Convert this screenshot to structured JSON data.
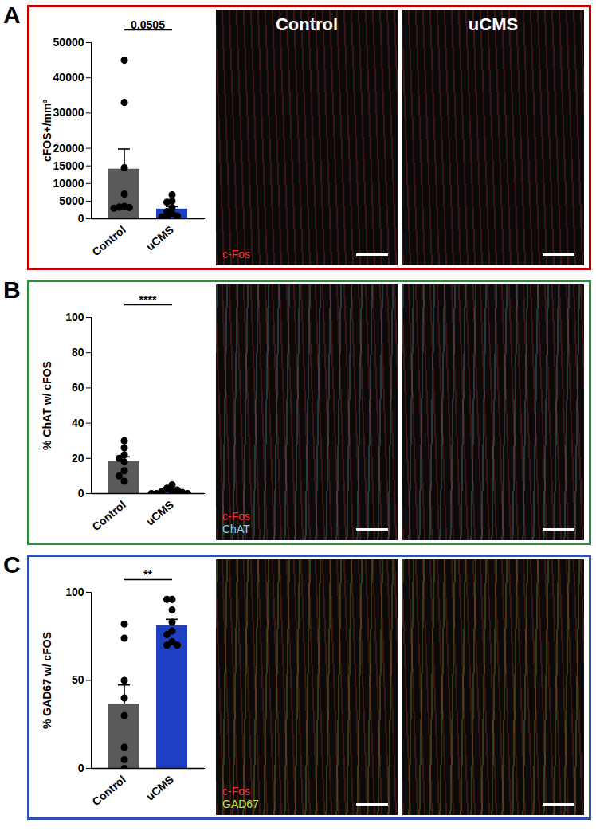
{
  "chart_data": [
    {
      "panel": "A",
      "type": "bar",
      "categories": [
        "Control",
        "uCMS"
      ],
      "values": [
        14100,
        2750
      ],
      "errors": [
        5700,
        700
      ],
      "points": [
        [
          45000,
          33000,
          14500,
          7000,
          3500,
          3300,
          3200,
          3000
        ],
        [
          6800,
          5000,
          4700,
          3200,
          2000,
          1500,
          800,
          500,
          300
        ]
      ],
      "colors": [
        "#5a5a5a",
        "#1f3fc2"
      ],
      "ylabel": "cFOS+/mm³",
      "ylim": [
        0,
        50000
      ],
      "yticks": [
        0,
        5000,
        10000,
        15000,
        20000,
        30000,
        40000,
        50000
      ],
      "annotation": "0.0505",
      "image_titles": [
        "Control",
        "uCMS"
      ],
      "image_stains": [
        {
          "name": "c-Fos",
          "color": "#ff3030"
        }
      ]
    },
    {
      "panel": "B",
      "type": "bar",
      "categories": [
        "Control",
        "uCMS"
      ],
      "values": [
        18.3,
        1.4
      ],
      "errors": [
        2.6,
        0.6
      ],
      "points": [
        [
          30,
          26,
          22,
          20,
          18,
          13,
          10,
          7
        ],
        [
          5,
          3,
          2,
          1.5,
          1,
          0.5,
          0,
          0,
          0
        ]
      ],
      "colors": [
        "#5a5a5a",
        "#1f3fc2"
      ],
      "ylabel": "% ChAT w/ cFOS",
      "ylim": [
        0,
        100
      ],
      "yticks": [
        0,
        20,
        40,
        60,
        80,
        100
      ],
      "annotation": "****",
      "image_stains": [
        {
          "name": "c-Fos",
          "color": "#ff3030"
        },
        {
          "name": "ChAT",
          "color": "#7fd8ec"
        }
      ]
    },
    {
      "panel": "C",
      "type": "bar",
      "categories": [
        "Control",
        "uCMS"
      ],
      "values": [
        36.6,
        81.2
      ],
      "errors": [
        10.8,
        3.5
      ],
      "points": [
        [
          82,
          74,
          50,
          40,
          30,
          12,
          5,
          0
        ],
        [
          96,
          96,
          90,
          83,
          78,
          76,
          72,
          70,
          70
        ]
      ],
      "colors": [
        "#5a5a5a",
        "#1f3fc2"
      ],
      "ylabel": "% GAD67 w/ cFOS",
      "ylim": [
        0,
        100
      ],
      "yticks": [
        0,
        50,
        100
      ],
      "annotation": "**",
      "image_stains": [
        {
          "name": "c-Fos",
          "color": "#ff3030"
        },
        {
          "name": "GAD67",
          "color": "#c8e632"
        }
      ]
    }
  ]
}
